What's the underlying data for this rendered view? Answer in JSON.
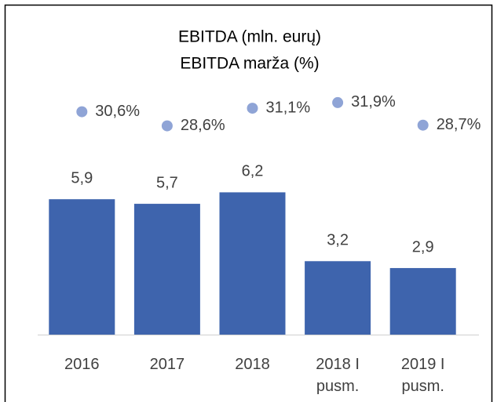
{
  "chart_data": {
    "type": "bar",
    "title": "EBITDA (mln. eurų)",
    "subtitle": "EBITDA marža (%)",
    "categories": [
      "2016",
      "2017",
      "2018",
      "2018 I pusm.",
      "2019 I pusm."
    ],
    "series": [
      {
        "name": "EBITDA (mln. eurų)",
        "type": "bar",
        "color": "#3e64ad",
        "values": [
          5.9,
          5.7,
          6.2,
          3.2,
          2.9
        ],
        "value_labels": [
          "5,9",
          "5,7",
          "6,2",
          "3,2",
          "2,9"
        ]
      },
      {
        "name": "EBITDA marža (%)",
        "type": "scatter",
        "axis": "y2",
        "color": "#8fa4d6",
        "values": [
          30.6,
          28.6,
          31.1,
          31.9,
          28.7
        ],
        "value_labels": [
          "30,6%",
          "28,6%",
          "31,1%",
          "31,9%",
          "28,7%"
        ]
      }
    ],
    "ylim": [
      0,
      7
    ],
    "y2lim": [
      20,
      33
    ]
  }
}
